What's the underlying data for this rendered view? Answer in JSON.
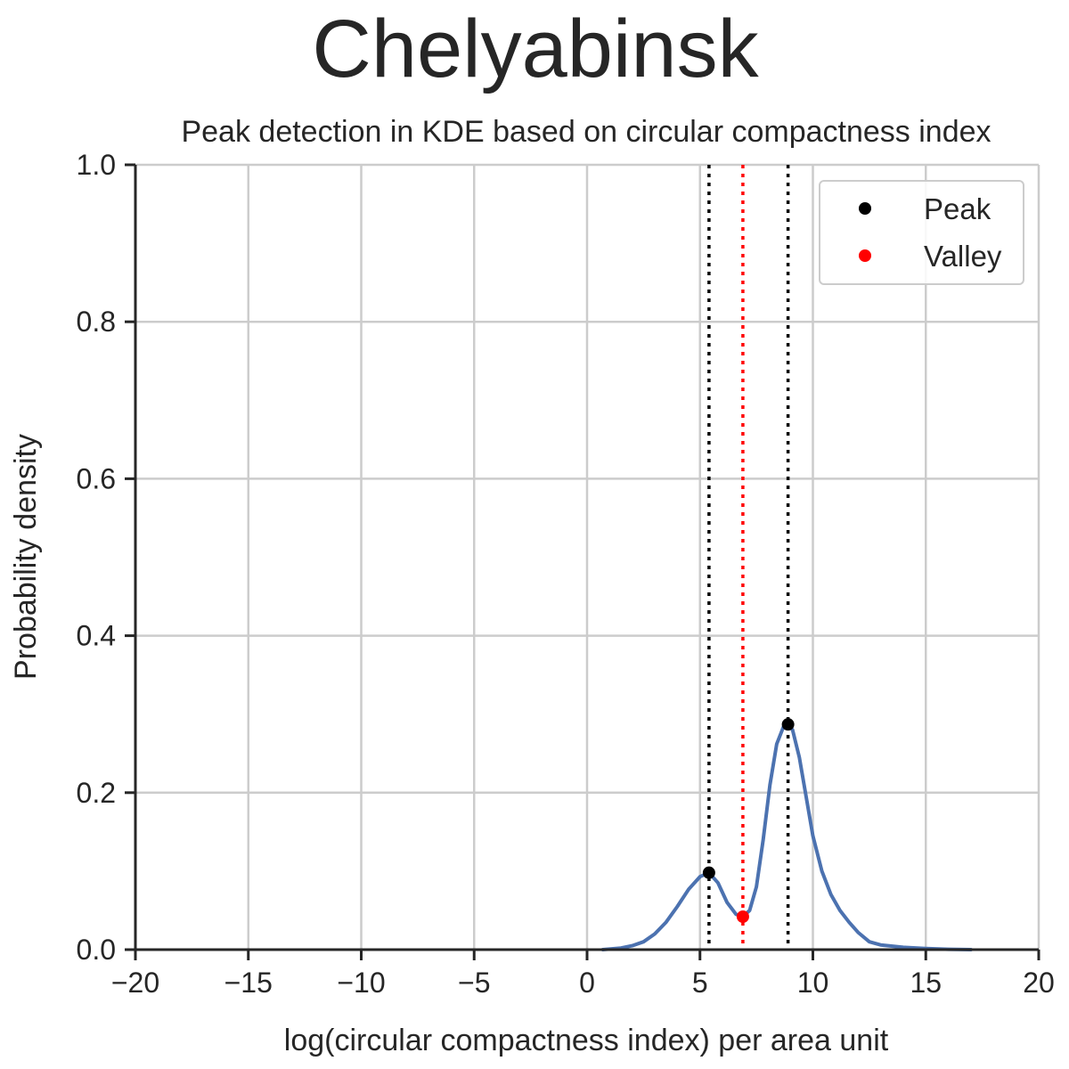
{
  "suptitle": "Chelyabinsk",
  "chart_data": {
    "type": "line",
    "title": "Peak detection in KDE based on circular compactness index",
    "xlabel": "log(circular compactness index) per area unit",
    "ylabel": "Probability density",
    "xlim": [
      -20,
      20
    ],
    "ylim": [
      0,
      1
    ],
    "grid": true,
    "legend_position": "top-right",
    "x_ticks": [
      "−20",
      "−15",
      "−10",
      "−5",
      "0",
      "5",
      "10",
      "15",
      "20"
    ],
    "y_ticks": [
      "0.0",
      "0.2",
      "0.4",
      "0.6",
      "0.8",
      "1.0"
    ],
    "series": [
      {
        "color": "#4c72b0",
        "x": [
          0.7,
          1.5,
          2.0,
          2.5,
          3.0,
          3.5,
          4.0,
          4.5,
          5.0,
          5.4,
          5.8,
          6.2,
          6.6,
          6.9,
          7.2,
          7.5,
          7.8,
          8.1,
          8.4,
          8.7,
          8.9,
          9.1,
          9.4,
          9.7,
          10.0,
          10.4,
          10.8,
          11.2,
          11.6,
          12.0,
          12.5,
          13.0,
          14.0,
          15.0,
          16.0,
          17.0
        ],
        "y": [
          0.0,
          0.002,
          0.005,
          0.01,
          0.02,
          0.035,
          0.055,
          0.077,
          0.093,
          0.098,
          0.085,
          0.06,
          0.045,
          0.042,
          0.05,
          0.08,
          0.14,
          0.21,
          0.262,
          0.284,
          0.287,
          0.28,
          0.245,
          0.195,
          0.145,
          0.1,
          0.07,
          0.05,
          0.035,
          0.022,
          0.01,
          0.006,
          0.003,
          0.0015,
          0.0005,
          0.0
        ]
      }
    ],
    "peaks": [
      {
        "x": 5.4,
        "y": 0.098
      },
      {
        "x": 8.9,
        "y": 0.287
      }
    ],
    "valleys": [
      {
        "x": 6.9,
        "y": 0.042
      }
    ],
    "peak_lines": [
      5.4,
      8.9
    ],
    "valley_lines": [
      6.9
    ],
    "legend": [
      {
        "label": "Peak",
        "color": "#000000"
      },
      {
        "label": "Valley",
        "color": "#ff0000"
      }
    ]
  }
}
